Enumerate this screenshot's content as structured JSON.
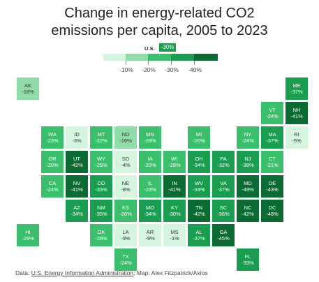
{
  "title_line1": "Change in energy-related CO2",
  "title_line2": "emissions per capita, 2005 to 2023",
  "legend": {
    "us_label": "U.S.",
    "us_value": "-30%",
    "ticks": [
      "-10%",
      "-20%",
      "-30%",
      "-40%"
    ],
    "colors": [
      "#d6f5df",
      "#90dca8",
      "#3bbf6d",
      "#1a9d50",
      "#0c6b32"
    ]
  },
  "states": [
    {
      "abbr": "AK",
      "value": "-18%",
      "pct": -18,
      "col": 0,
      "row": 0
    },
    {
      "abbr": "ME",
      "value": "-37%",
      "pct": -37,
      "col": 11,
      "row": 0
    },
    {
      "abbr": "VT",
      "value": "-24%",
      "pct": -24,
      "col": 10,
      "row": 1
    },
    {
      "abbr": "NH",
      "value": "-41%",
      "pct": -41,
      "col": 11,
      "row": 1
    },
    {
      "abbr": "WA",
      "value": "-23%",
      "pct": -23,
      "col": 1,
      "row": 2
    },
    {
      "abbr": "ID",
      "value": "-3%",
      "pct": -3,
      "col": 2,
      "row": 2
    },
    {
      "abbr": "MT",
      "value": "-22%",
      "pct": -22,
      "col": 3,
      "row": 2
    },
    {
      "abbr": "ND",
      "value": "-16%",
      "pct": -16,
      "col": 4,
      "row": 2
    },
    {
      "abbr": "MN",
      "value": "-29%",
      "pct": -29,
      "col": 5,
      "row": 2
    },
    {
      "abbr": "MI",
      "value": "-20%",
      "pct": -20,
      "col": 7,
      "row": 2
    },
    {
      "abbr": "NY",
      "value": "-24%",
      "pct": -24,
      "col": 9,
      "row": 2
    },
    {
      "abbr": "MA",
      "value": "-37%",
      "pct": -37,
      "col": 10,
      "row": 2
    },
    {
      "abbr": "RI",
      "value": "-5%",
      "pct": -5,
      "col": 11,
      "row": 2
    },
    {
      "abbr": "OR",
      "value": "-20%",
      "pct": -20,
      "col": 1,
      "row": 3
    },
    {
      "abbr": "UT",
      "value": "-42%",
      "pct": -42,
      "col": 2,
      "row": 3
    },
    {
      "abbr": "WY",
      "value": "-25%",
      "pct": -25,
      "col": 3,
      "row": 3
    },
    {
      "abbr": "SD",
      "value": "-4%",
      "pct": -4,
      "col": 4,
      "row": 3
    },
    {
      "abbr": "IA",
      "value": "-20%",
      "pct": -20,
      "col": 5,
      "row": 3
    },
    {
      "abbr": "WI",
      "value": "-28%",
      "pct": -28,
      "col": 6,
      "row": 3
    },
    {
      "abbr": "OH",
      "value": "-34%",
      "pct": -34,
      "col": 7,
      "row": 3
    },
    {
      "abbr": "PA",
      "value": "-32%",
      "pct": -32,
      "col": 8,
      "row": 3
    },
    {
      "abbr": "NJ",
      "value": "-38%",
      "pct": -38,
      "col": 9,
      "row": 3
    },
    {
      "abbr": "CT",
      "value": "-21%",
      "pct": -21,
      "col": 10,
      "row": 3
    },
    {
      "abbr": "CA",
      "value": "-24%",
      "pct": -24,
      "col": 1,
      "row": 4
    },
    {
      "abbr": "NV",
      "value": "-41%",
      "pct": -41,
      "col": 2,
      "row": 4
    },
    {
      "abbr": "CO",
      "value": "-33%",
      "pct": -33,
      "col": 3,
      "row": 4
    },
    {
      "abbr": "NE",
      "value": "-8%",
      "pct": -8,
      "col": 4,
      "row": 4
    },
    {
      "abbr": "IL",
      "value": "-23%",
      "pct": -23,
      "col": 5,
      "row": 4
    },
    {
      "abbr": "IN",
      "value": "-41%",
      "pct": -41,
      "col": 6,
      "row": 4
    },
    {
      "abbr": "WV",
      "value": "-33%",
      "pct": -33,
      "col": 7,
      "row": 4
    },
    {
      "abbr": "VA",
      "value": "-37%",
      "pct": -37,
      "col": 8,
      "row": 4
    },
    {
      "abbr": "MD",
      "value": "-49%",
      "pct": -49,
      "col": 9,
      "row": 4
    },
    {
      "abbr": "DE",
      "value": "-43%",
      "pct": -43,
      "col": 10,
      "row": 4
    },
    {
      "abbr": "AZ",
      "value": "-34%",
      "pct": -34,
      "col": 2,
      "row": 5
    },
    {
      "abbr": "NM",
      "value": "-35%",
      "pct": -35,
      "col": 3,
      "row": 5
    },
    {
      "abbr": "KS",
      "value": "-26%",
      "pct": -26,
      "col": 4,
      "row": 5
    },
    {
      "abbr": "MO",
      "value": "-34%",
      "pct": -34,
      "col": 5,
      "row": 5
    },
    {
      "abbr": "KY",
      "value": "-30%",
      "pct": -30,
      "col": 6,
      "row": 5
    },
    {
      "abbr": "TN",
      "value": "-42%",
      "pct": -42,
      "col": 7,
      "row": 5
    },
    {
      "abbr": "SC",
      "value": "-36%",
      "pct": -36,
      "col": 8,
      "row": 5
    },
    {
      "abbr": "NC",
      "value": "-42%",
      "pct": -42,
      "col": 9,
      "row": 5
    },
    {
      "abbr": "DC",
      "value": "-48%",
      "pct": -48,
      "col": 10,
      "row": 5
    },
    {
      "abbr": "HI",
      "value": "-29%",
      "pct": -29,
      "col": 0,
      "row": 6
    },
    {
      "abbr": "OK",
      "value": "-28%",
      "pct": -28,
      "col": 3,
      "row": 6
    },
    {
      "abbr": "LA",
      "value": "-9%",
      "pct": -9,
      "col": 4,
      "row": 6
    },
    {
      "abbr": "AR",
      "value": "-9%",
      "pct": -9,
      "col": 5,
      "row": 6
    },
    {
      "abbr": "MS",
      "value": "-1%",
      "pct": -1,
      "col": 6,
      "row": 6
    },
    {
      "abbr": "AL",
      "value": "-37%",
      "pct": -37,
      "col": 7,
      "row": 6
    },
    {
      "abbr": "GA",
      "value": "-45%",
      "pct": -45,
      "col": 8,
      "row": 6
    },
    {
      "abbr": "TX",
      "value": "-24%",
      "pct": -24,
      "col": 4,
      "row": 7
    },
    {
      "abbr": "FL",
      "value": "-33%",
      "pct": -33,
      "col": 9,
      "row": 7
    }
  ],
  "footer": {
    "prefix": "Data: ",
    "source": "U.S. Energy Information Administration",
    "suffix": "; Map: Alex Fitzpatrick/Axios"
  }
}
